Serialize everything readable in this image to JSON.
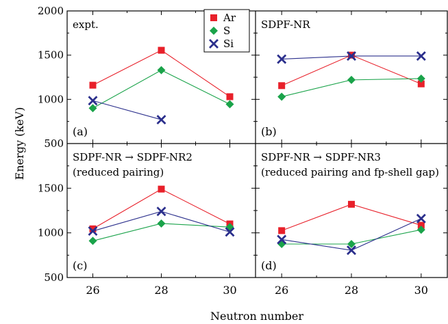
{
  "chart_data": {
    "type": "scatter",
    "ylabel": "Energy (keV)",
    "xlabel": "Neutron number",
    "x_ticks": [
      26,
      28,
      30
    ],
    "y_ticks_top": [
      500,
      1000,
      1500,
      2000
    ],
    "y_ticks_bottom": [
      500,
      1000,
      1500
    ],
    "xlim": [
      25.25,
      30.75
    ],
    "ylim": [
      500,
      2000
    ],
    "colors": {
      "Ar": "#e8202a",
      "S": "#1aa34a",
      "Si": "#2b2f8c"
    },
    "legend": [
      "Ar",
      "S",
      "Si"
    ],
    "legend_position": "top-right of panel (a)",
    "panels": [
      {
        "id": "a",
        "panel_label": "(a)",
        "title": "expt.",
        "subtitle": "",
        "series": [
          {
            "name": "Ar",
            "marker": "square",
            "x": [
              26,
              28,
              30
            ],
            "y": [
              1160,
              1555,
              1030
            ]
          },
          {
            "name": "S",
            "marker": "diamond",
            "x": [
              26,
              28,
              30
            ],
            "y": [
              900,
              1330,
              945
            ]
          },
          {
            "name": "Si",
            "marker": "cross",
            "x": [
              26,
              28
            ],
            "y": [
              985,
              770
            ]
          }
        ]
      },
      {
        "id": "b",
        "panel_label": "(b)",
        "title": "SDPF-NR",
        "subtitle": "",
        "series": [
          {
            "name": "Ar",
            "marker": "square",
            "x": [
              26,
              28,
              30
            ],
            "y": [
              1155,
              1500,
              1175
            ]
          },
          {
            "name": "S",
            "marker": "diamond",
            "x": [
              26,
              28,
              30
            ],
            "y": [
              1030,
              1220,
              1235
            ]
          },
          {
            "name": "Si",
            "marker": "cross",
            "x": [
              26,
              28,
              30
            ],
            "y": [
              1455,
              1490,
              1490
            ]
          }
        ]
      },
      {
        "id": "c",
        "panel_label": "(c)",
        "title": "SDPF-NR → SDPF-NR2",
        "subtitle": "(reduced pairing)",
        "series": [
          {
            "name": "Ar",
            "marker": "square",
            "x": [
              26,
              28,
              30
            ],
            "y": [
              1045,
              1490,
              1100
            ]
          },
          {
            "name": "S",
            "marker": "diamond",
            "x": [
              26,
              28,
              30
            ],
            "y": [
              910,
              1105,
              1065
            ]
          },
          {
            "name": "Si",
            "marker": "cross",
            "x": [
              26,
              28,
              30
            ],
            "y": [
              1020,
              1240,
              1010
            ]
          }
        ]
      },
      {
        "id": "d",
        "panel_label": "(d)",
        "title": "SDPF-NR → SDPF-NR3",
        "subtitle": "(reduced pairing and fp-shell gap)",
        "series": [
          {
            "name": "Ar",
            "marker": "square",
            "x": [
              26,
              28,
              30
            ],
            "y": [
              1025,
              1320,
              1085
            ]
          },
          {
            "name": "S",
            "marker": "diamond",
            "x": [
              26,
              28,
              30
            ],
            "y": [
              875,
              875,
              1035
            ]
          },
          {
            "name": "Si",
            "marker": "cross",
            "x": [
              26,
              28,
              30
            ],
            "y": [
              925,
              805,
              1160
            ]
          }
        ]
      }
    ]
  }
}
